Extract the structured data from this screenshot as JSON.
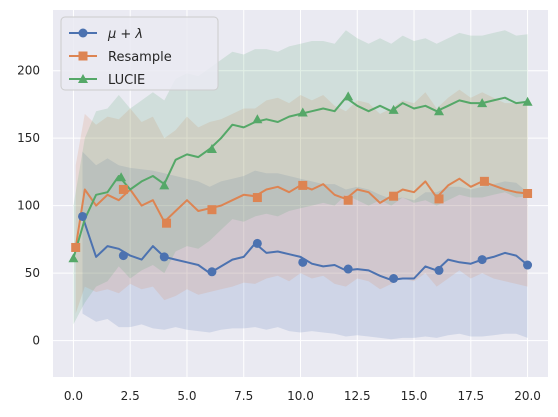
{
  "chart_data": {
    "type": "line",
    "title": "",
    "xlabel": "",
    "ylabel": "",
    "xlim": [
      -0.9,
      20.9
    ],
    "ylim": [
      -27,
      245
    ],
    "grid": true,
    "background": "#eaeaf2",
    "legend_position": "top-left",
    "xticks": [
      0.0,
      2.5,
      5.0,
      7.5,
      10.0,
      12.5,
      15.0,
      17.5,
      20.0
    ],
    "xtick_labels": [
      "0.0",
      "2.5",
      "5.0",
      "7.5",
      "10.0",
      "12.5",
      "15.0",
      "17.5",
      "20.0"
    ],
    "yticks": [
      0,
      50,
      100,
      150,
      200
    ],
    "ytick_labels": [
      "0",
      "50",
      "100",
      "150",
      "200"
    ],
    "series": [
      {
        "name": "μ + λ",
        "color": "#4c72b0",
        "marker": "circle",
        "x": [
          0.4,
          1,
          1.5,
          2,
          2.5,
          3,
          3.5,
          4,
          4.5,
          5,
          5.5,
          6,
          6.5,
          7,
          7.5,
          8,
          8.5,
          9,
          9.5,
          10,
          10.5,
          11,
          11.5,
          12,
          12.5,
          13,
          13.5,
          14,
          14.5,
          15,
          15.5,
          16,
          16.5,
          17,
          17.5,
          18,
          18.5,
          19,
          19.5,
          20
        ],
        "y": [
          92,
          62,
          70,
          68,
          63,
          60,
          70,
          62,
          60,
          58,
          56,
          50,
          55,
          60,
          62,
          72,
          65,
          66,
          64,
          62,
          57,
          55,
          56,
          52,
          53,
          52,
          48,
          45,
          46,
          46,
          55,
          52,
          60,
          58,
          57,
          60,
          62,
          65,
          63,
          56
        ],
        "lower": [
          20,
          14,
          16,
          10,
          10,
          12,
          9,
          8,
          10,
          8,
          7,
          6,
          8,
          9,
          9,
          10,
          8,
          10,
          7,
          6,
          7,
          6,
          5,
          3,
          4,
          3,
          2,
          1,
          2,
          2,
          3,
          2,
          4,
          5,
          3,
          3,
          4,
          5,
          5,
          2
        ],
        "upper": [
          140,
          130,
          135,
          130,
          128,
          127,
          126,
          124,
          122,
          120,
          118,
          114,
          118,
          120,
          122,
          126,
          124,
          124,
          122,
          120,
          118,
          116,
          116,
          112,
          114,
          112,
          108,
          105,
          106,
          104,
          110,
          110,
          114,
          114,
          112,
          114,
          116,
          118,
          117,
          110
        ],
        "marker_x": [
          0.4,
          2.2,
          4.0,
          6.1,
          8.1,
          10.1,
          12.1,
          14.1,
          16.1,
          18.0,
          20.0
        ],
        "marker_y": [
          92,
          63,
          62,
          51,
          72,
          58,
          53,
          46,
          52,
          60,
          56
        ]
      },
      {
        "name": "Resample",
        "color": "#dd8452",
        "marker": "square",
        "x": [
          0.1,
          0.5,
          1,
          1.5,
          2,
          2.5,
          3,
          3.5,
          4,
          4.5,
          5,
          5.5,
          6,
          6.5,
          7,
          7.5,
          8,
          8.5,
          9,
          9.5,
          10,
          10.5,
          11,
          11.5,
          12,
          12.5,
          13,
          13.5,
          14,
          14.5,
          15,
          15.5,
          16,
          16.5,
          17,
          17.5,
          18,
          18.5,
          19,
          19.5,
          20
        ],
        "y": [
          69,
          112,
          100,
          108,
          104,
          112,
          100,
          104,
          88,
          96,
          104,
          96,
          98,
          100,
          104,
          108,
          107,
          112,
          114,
          110,
          115,
          112,
          116,
          108,
          105,
          112,
          110,
          102,
          107,
          112,
          110,
          118,
          106,
          115,
          120,
          114,
          118,
          115,
          112,
          110,
          109
        ],
        "lower": [
          20,
          40,
          36,
          38,
          35,
          42,
          38,
          40,
          30,
          33,
          38,
          34,
          36,
          38,
          40,
          43,
          42,
          46,
          48,
          44,
          50,
          46,
          48,
          42,
          40,
          46,
          44,
          38,
          42,
          46,
          44,
          50,
          40,
          46,
          52,
          46,
          50,
          46,
          44,
          42,
          40
        ],
        "upper": [
          130,
          168,
          160,
          166,
          164,
          172,
          162,
          166,
          150,
          156,
          166,
          158,
          162,
          164,
          168,
          172,
          172,
          178,
          180,
          176,
          182,
          178,
          182,
          174,
          170,
          178,
          176,
          168,
          172,
          178,
          176,
          184,
          172,
          180,
          186,
          180,
          184,
          180,
          176,
          176,
          175
        ],
        "marker_x": [
          0.1,
          2.2,
          4.1,
          6.1,
          8.1,
          10.1,
          12.1,
          14.1,
          16.1,
          18.1,
          20.0
        ],
        "marker_y": [
          69,
          112,
          87,
          97,
          106,
          115,
          104,
          107,
          105,
          118,
          109
        ]
      },
      {
        "name": "LUCIE",
        "color": "#55a868",
        "marker": "triangle",
        "x": [
          0,
          0.5,
          1,
          1.5,
          2,
          2.5,
          3,
          3.5,
          4,
          4.5,
          5,
          5.5,
          6,
          6.5,
          7,
          7.5,
          8,
          8.5,
          9,
          9.5,
          10,
          10.5,
          11,
          11.5,
          12,
          12.5,
          13,
          13.5,
          14,
          14.5,
          15,
          15.5,
          16,
          16.5,
          17,
          17.5,
          18,
          18.5,
          19,
          19.5,
          20
        ],
        "y": [
          61,
          90,
          108,
          110,
          122,
          112,
          118,
          122,
          116,
          134,
          138,
          136,
          142,
          150,
          160,
          158,
          162,
          164,
          162,
          166,
          168,
          170,
          172,
          170,
          180,
          174,
          170,
          174,
          170,
          176,
          172,
          174,
          170,
          174,
          178,
          176,
          176,
          178,
          180,
          176,
          177
        ],
        "lower": [
          12,
          28,
          40,
          44,
          55,
          46,
          52,
          56,
          50,
          66,
          70,
          68,
          74,
          82,
          90,
          88,
          92,
          94,
          92,
          96,
          98,
          100,
          102,
          100,
          108,
          104,
          100,
          104,
          100,
          106,
          102,
          104,
          100,
          104,
          108,
          106,
          106,
          108,
          110,
          106,
          107
        ],
        "upper": [
          100,
          150,
          170,
          172,
          182,
          172,
          178,
          184,
          178,
          194,
          198,
          196,
          202,
          208,
          214,
          212,
          216,
          216,
          214,
          218,
          220,
          222,
          222,
          220,
          230,
          224,
          220,
          224,
          220,
          226,
          222,
          224,
          220,
          224,
          228,
          226,
          226,
          228,
          230,
          226,
          227
        ],
        "marker_x": [
          0.0,
          2.1,
          4.0,
          6.1,
          8.1,
          10.1,
          12.1,
          14.1,
          16.1,
          18.0,
          20.0
        ],
        "marker_y": [
          61,
          121,
          115,
          142,
          164,
          169,
          181,
          171,
          170,
          176,
          177
        ]
      }
    ]
  }
}
